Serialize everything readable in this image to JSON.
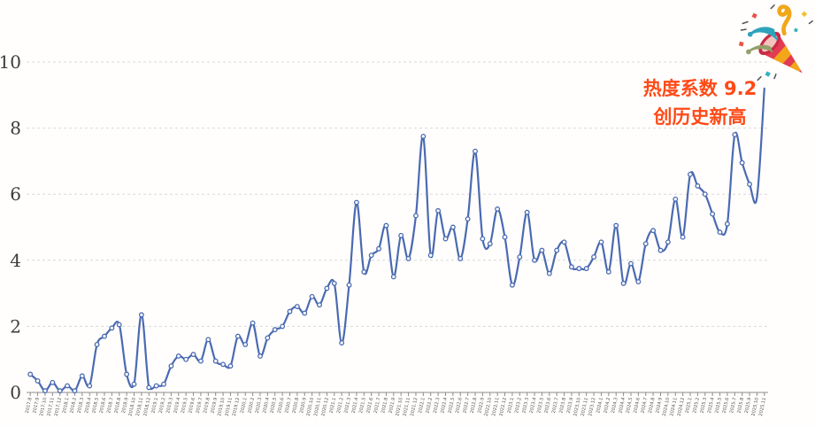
{
  "chart_data": {
    "type": "line",
    "title": "",
    "series_name": "热度系数",
    "smooth": true,
    "marker": "open-circle",
    "markerless_last_n": 2,
    "grid": "horizontal-dashed",
    "legend": "none",
    "ylim": [
      0,
      10
    ],
    "ytick_step": 2,
    "x_labels": [
      "2017.8",
      "2017.9",
      "2017.10",
      "2017.11",
      "2017.12",
      "2018.1",
      "2018.2",
      "2018.3",
      "2018.4",
      "2018.5",
      "2018.6",
      "2018.7",
      "2018.8",
      "2018.9",
      "2018.10",
      "2018.11",
      "2018.12",
      "2019.1",
      "2019.2",
      "2019.3",
      "2019.4",
      "2019.5",
      "2019.6",
      "2019.7",
      "2019.8",
      "2019.9",
      "2019.10",
      "2019.11",
      "2019.12",
      "2020.1",
      "2020.2",
      "2020.3",
      "2020.4",
      "2020.5",
      "2020.6",
      "2020.7",
      "2020.8",
      "2020.9",
      "2020.10",
      "2020.11",
      "2020.12",
      "2021.1",
      "2021.2",
      "2021.3",
      "2021.4",
      "2021.5",
      "2021.6",
      "2021.7",
      "2021.8",
      "2021.9",
      "2021.10",
      "2021.11",
      "2021.12",
      "2022.1",
      "2022.2",
      "2022.3",
      "2022.4",
      "2022.5",
      "2022.6",
      "2022.7",
      "2022.8",
      "2022.9",
      "2022.10",
      "2022.11",
      "2022.12",
      "2023.1",
      "2023.2",
      "2023.3",
      "2023.4",
      "2023.5",
      "2023.6",
      "2023.7",
      "2023.8",
      "2023.9",
      "2023.10",
      "2023.11",
      "2023.12",
      "2024.1",
      "2024.2",
      "2024.3",
      "2024.4",
      "2024.5",
      "2024.6",
      "2024.7",
      "2024.8",
      "2024.9",
      "2024.10",
      "2024.11",
      "2024.12",
      "2025.1",
      "2025.2",
      "2025.3",
      "2025.4",
      "2025.5",
      "2025.6",
      "2025.7",
      "2025.8",
      "2025.9",
      "2025.10",
      "2025.11"
    ],
    "values": [
      0.55,
      0.35,
      0.05,
      0.3,
      0.05,
      0.2,
      0.05,
      0.5,
      0.2,
      1.45,
      1.7,
      1.95,
      2.05,
      0.55,
      0.25,
      2.35,
      0.15,
      0.2,
      0.25,
      0.8,
      1.1,
      1.0,
      1.15,
      0.95,
      1.6,
      0.95,
      0.85,
      0.8,
      1.7,
      1.45,
      2.1,
      1.1,
      1.65,
      1.9,
      2.0,
      2.45,
      2.6,
      2.4,
      2.9,
      2.65,
      3.15,
      3.3,
      1.5,
      3.25,
      5.75,
      3.65,
      4.15,
      4.35,
      5.05,
      3.5,
      4.75,
      4.05,
      5.35,
      7.75,
      4.15,
      5.5,
      4.65,
      5.0,
      4.05,
      5.25,
      7.3,
      4.65,
      4.5,
      5.55,
      4.7,
      3.25,
      4.1,
      5.45,
      4.0,
      4.3,
      3.6,
      4.3,
      4.55,
      3.8,
      3.75,
      3.75,
      4.1,
      4.55,
      3.65,
      5.05,
      3.3,
      3.9,
      3.35,
      4.5,
      4.9,
      4.3,
      4.55,
      5.85,
      4.7,
      6.6,
      6.25,
      6.0,
      5.4,
      4.85,
      5.1,
      7.8,
      6.95,
      6.3,
      5.9,
      9.2
    ],
    "max_value_label": "9.2"
  },
  "annotation": {
    "line1": "热度系数 9.2",
    "line2": "创历史新高",
    "color": "#ff4a17"
  },
  "icons": {
    "top_right": "party-popper-icon"
  },
  "colors": {
    "line": "#4a6ab2",
    "marker_fill": "#ffffff",
    "grid": "#d9d9d9",
    "axis": "#8c8c8c",
    "y_label": "#3c3c3c",
    "x_label": "#595959",
    "background": "#fffefc",
    "annotation": "#ff4a17"
  }
}
